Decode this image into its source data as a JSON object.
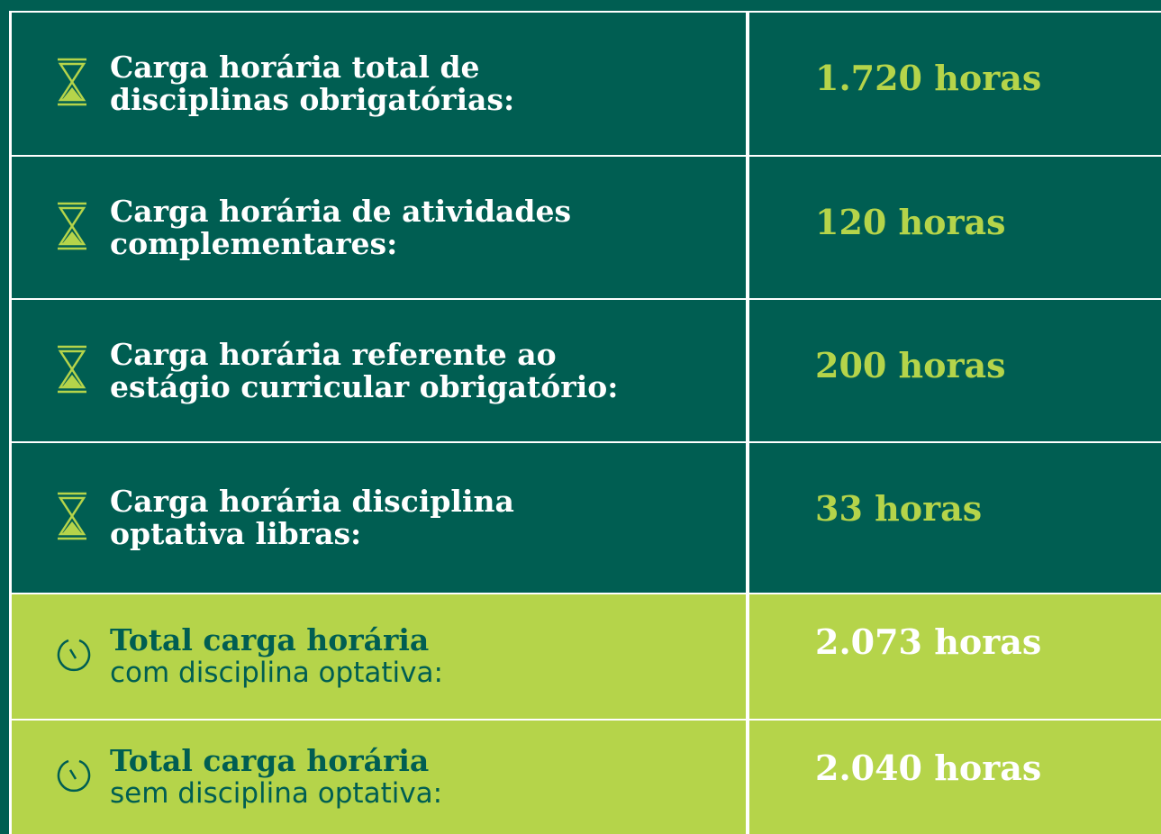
{
  "table": {
    "rows": [
      {
        "lines": [
          "Carga horária total de",
          "disciplinas obrigatórias:"
        ],
        "value": "1.720 horas"
      },
      {
        "lines": [
          "Carga horária de atividades",
          "complementares:"
        ],
        "value": "120 horas"
      },
      {
        "lines": [
          "Carga horária referente ao",
          "estágio curricular obrigatório:"
        ],
        "value": "200 horas"
      },
      {
        "lines": [
          "Carga horária disciplina",
          "optativa libras:"
        ],
        "value": "33 horas"
      },
      {
        "bold": "Total carga horária",
        "light": "com disciplina optativa:",
        "value": "2.073 horas"
      },
      {
        "bold": "Total carga horária",
        "light": "sem disciplina optativa:",
        "value": "2.040 horas"
      }
    ]
  }
}
